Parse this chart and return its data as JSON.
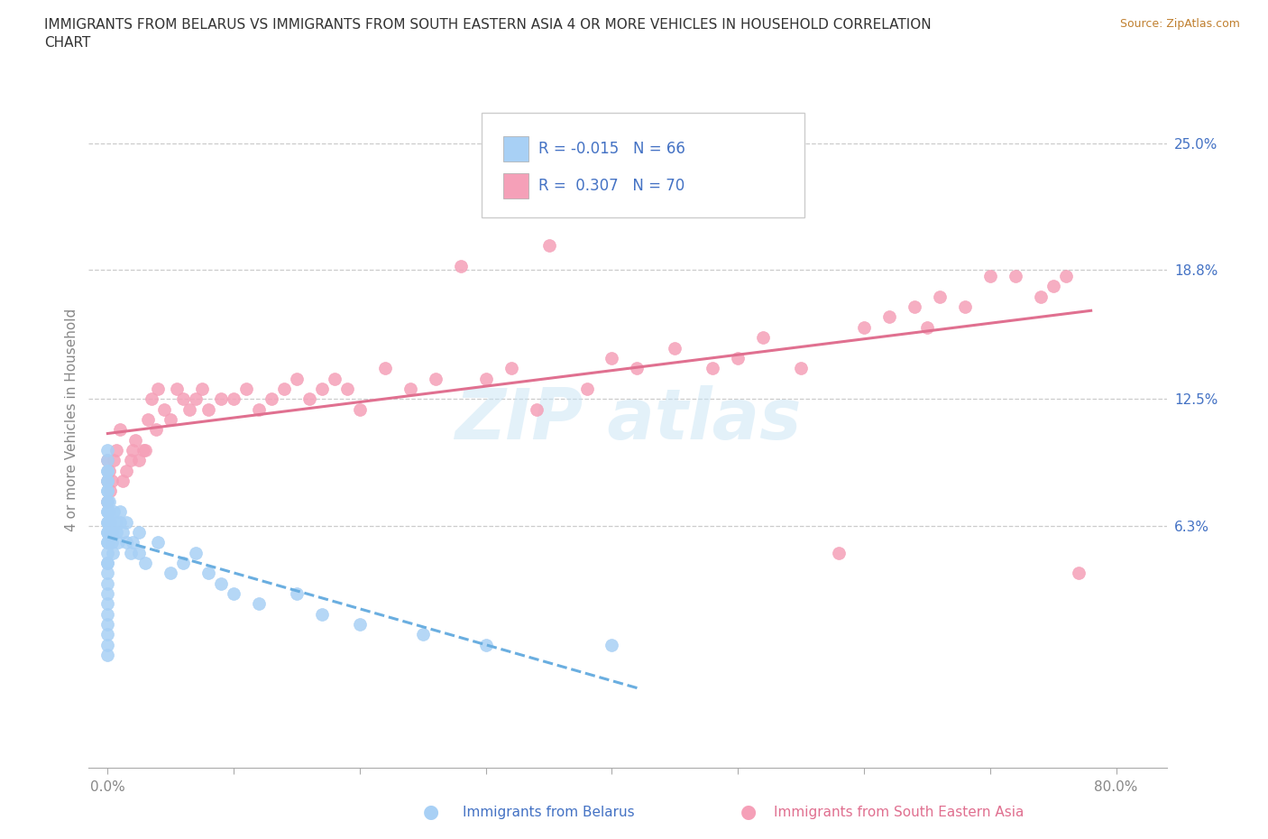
{
  "title_line1": "IMMIGRANTS FROM BELARUS VS IMMIGRANTS FROM SOUTH EASTERN ASIA 4 OR MORE VEHICLES IN HOUSEHOLD CORRELATION",
  "title_line2": "CHART",
  "source": "Source: ZipAtlas.com",
  "ylabel": "4 or more Vehicles in Household",
  "color_belarus": "#a8d0f5",
  "color_sea": "#f5a0b8",
  "color_sea_line": "#e07090",
  "color_blue_line": "#6aaee0",
  "color_blue_text": "#4472c4",
  "color_title": "#333333",
  "color_source": "#c08030",
  "color_grid": "#cccccc",
  "R_belarus": -0.015,
  "N_belarus": 66,
  "R_sea": 0.307,
  "N_sea": 70,
  "xlim": [
    -0.015,
    0.84
  ],
  "ylim": [
    -0.055,
    0.285
  ],
  "ytick_right_vals": [
    0.063,
    0.125,
    0.188,
    0.25
  ],
  "ytick_right_labels": [
    "6.3%",
    "12.5%",
    "18.8%",
    "25.0%"
  ],
  "xtick_vals": [
    0.0,
    0.1,
    0.2,
    0.3,
    0.4,
    0.5,
    0.6,
    0.7,
    0.8
  ],
  "xtick_labels": [
    "0.0%",
    "",
    "",
    "",
    "",
    "",
    "",
    "",
    "80.0%"
  ],
  "belarus_x": [
    0.0,
    0.0,
    0.0,
    0.0,
    0.0,
    0.0,
    0.0,
    0.0,
    0.0,
    0.0,
    0.0,
    0.0,
    0.0,
    0.0,
    0.0,
    0.0,
    0.0,
    0.0,
    0.0,
    0.0,
    0.0,
    0.0,
    0.0,
    0.0,
    0.0,
    0.0,
    0.0,
    0.0,
    0.0,
    0.0,
    0.001,
    0.001,
    0.001,
    0.002,
    0.002,
    0.003,
    0.003,
    0.004,
    0.005,
    0.006,
    0.007,
    0.008,
    0.01,
    0.01,
    0.012,
    0.015,
    0.015,
    0.018,
    0.02,
    0.025,
    0.025,
    0.03,
    0.04,
    0.05,
    0.06,
    0.07,
    0.08,
    0.09,
    0.1,
    0.12,
    0.15,
    0.17,
    0.2,
    0.25,
    0.3,
    0.4
  ],
  "belarus_y": [
    0.07,
    0.075,
    0.08,
    0.085,
    0.09,
    0.095,
    0.1,
    0.06,
    0.065,
    0.055,
    0.05,
    0.045,
    0.04,
    0.035,
    0.03,
    0.025,
    0.02,
    0.015,
    0.01,
    0.005,
    0.0,
    0.07,
    0.065,
    0.06,
    0.055,
    0.08,
    0.085,
    0.075,
    0.09,
    0.045,
    0.075,
    0.07,
    0.065,
    0.06,
    0.065,
    0.055,
    0.06,
    0.05,
    0.07,
    0.065,
    0.06,
    0.055,
    0.07,
    0.065,
    0.06,
    0.065,
    0.055,
    0.05,
    0.055,
    0.06,
    0.05,
    0.045,
    0.055,
    0.04,
    0.045,
    0.05,
    0.04,
    0.035,
    0.03,
    0.025,
    0.03,
    0.02,
    0.015,
    0.01,
    0.005,
    0.005
  ],
  "sea_x": [
    0.0,
    0.0,
    0.0,
    0.001,
    0.002,
    0.003,
    0.005,
    0.007,
    0.01,
    0.012,
    0.015,
    0.018,
    0.02,
    0.022,
    0.025,
    0.028,
    0.03,
    0.032,
    0.035,
    0.038,
    0.04,
    0.045,
    0.05,
    0.055,
    0.06,
    0.065,
    0.07,
    0.075,
    0.08,
    0.09,
    0.1,
    0.11,
    0.12,
    0.13,
    0.14,
    0.15,
    0.16,
    0.17,
    0.18,
    0.19,
    0.2,
    0.22,
    0.24,
    0.26,
    0.28,
    0.3,
    0.32,
    0.34,
    0.35,
    0.38,
    0.4,
    0.42,
    0.45,
    0.48,
    0.5,
    0.52,
    0.55,
    0.58,
    0.6,
    0.62,
    0.64,
    0.65,
    0.66,
    0.68,
    0.7,
    0.72,
    0.74,
    0.75,
    0.76,
    0.77
  ],
  "sea_y": [
    0.095,
    0.085,
    0.075,
    0.09,
    0.08,
    0.085,
    0.095,
    0.1,
    0.11,
    0.085,
    0.09,
    0.095,
    0.1,
    0.105,
    0.095,
    0.1,
    0.1,
    0.115,
    0.125,
    0.11,
    0.13,
    0.12,
    0.115,
    0.13,
    0.125,
    0.12,
    0.125,
    0.13,
    0.12,
    0.125,
    0.125,
    0.13,
    0.12,
    0.125,
    0.13,
    0.135,
    0.125,
    0.13,
    0.135,
    0.13,
    0.12,
    0.14,
    0.13,
    0.135,
    0.19,
    0.135,
    0.14,
    0.12,
    0.2,
    0.13,
    0.145,
    0.14,
    0.15,
    0.14,
    0.145,
    0.155,
    0.14,
    0.05,
    0.16,
    0.165,
    0.17,
    0.16,
    0.175,
    0.17,
    0.185,
    0.185,
    0.175,
    0.18,
    0.185,
    0.04
  ]
}
